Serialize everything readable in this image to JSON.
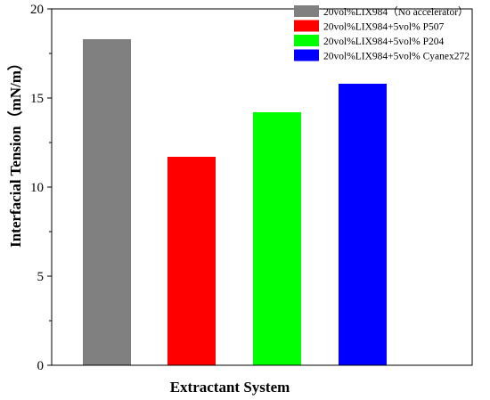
{
  "chart_data": {
    "type": "bar",
    "categories": [
      "20vol%LIX984（No accelerator）",
      "20vol%LIX984+5vol% P507",
      "20vol%LIX984+5vol% P204",
      "20vol%LIX984+5vol% Cyanex272"
    ],
    "values": [
      18.3,
      11.7,
      14.2,
      15.8
    ],
    "colors": [
      "#808080",
      "#ff0000",
      "#00ff00",
      "#0000ff"
    ],
    "xlabel": "Extractant System",
    "ylabel": "Interfacial Tension（mN/m）",
    "ylim": [
      0,
      20
    ],
    "yticks": [
      0,
      5,
      10,
      15,
      20
    ],
    "grid": false,
    "legend_position": "top-right",
    "legend": [
      "20vol%LIX984（No accelerator）",
      "20vol%LIX984+5vol% P507",
      "20vol%LIX984+5vol% P204",
      "20vol%LIX984+5vol% Cyanex272"
    ]
  }
}
